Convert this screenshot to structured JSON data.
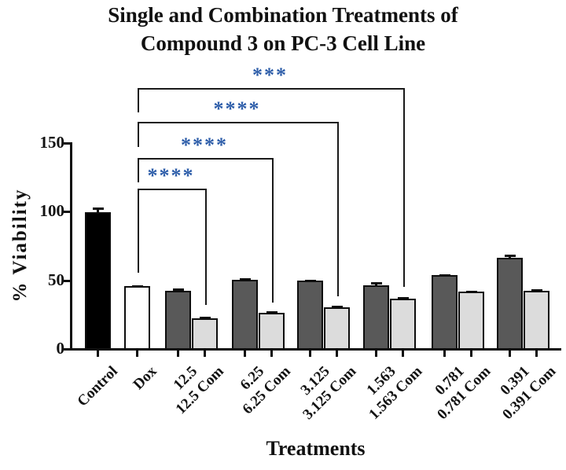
{
  "figure": {
    "title_line1": "Single and Combination Treatments of",
    "title_line2": "Compound 3 on PC-3 Cell Line"
  },
  "chart_data": {
    "type": "bar",
    "title": "Single and Combination Treatments of Compound 3 on PC-3 Cell Line",
    "xlabel": "Treatments",
    "ylabel": "% Viability",
    "ylim": [
      0,
      150
    ],
    "yticks": [
      "0",
      "50",
      "100",
      "150"
    ],
    "grid": false,
    "legend": "none",
    "categories": [
      "Control",
      "Dox",
      "12.5",
      "12.5 Com",
      "6.25",
      "6.25 Com",
      "3.125",
      "3.125 Com",
      "1.563",
      "1.563 Com",
      "0.781",
      "0.781 Com",
      "0.391",
      "0.391 Com"
    ],
    "values": [
      99,
      45,
      42,
      22,
      50,
      26,
      49,
      30,
      46,
      36,
      53,
      41,
      66,
      42
    ],
    "errors": [
      3.5,
      1,
      1.5,
      1,
      1,
      1,
      1,
      1,
      2,
      1,
      1,
      1,
      2,
      1
    ],
    "bar_colors": [
      "#000000",
      "#ffffff",
      "#595959",
      "#dcdcdc",
      "#595959",
      "#dcdcdc",
      "#595959",
      "#dcdcdc",
      "#595959",
      "#dcdcdc",
      "#595959",
      "#dcdcdc",
      "#595959",
      "#dcdcdc"
    ],
    "significance": [
      {
        "label": "***",
        "from": "Dox",
        "to": "1.563 Com"
      },
      {
        "label": "****",
        "from": "Dox",
        "to": "3.125 Com"
      },
      {
        "label": "****",
        "from": "Dox",
        "to": "6.25 Com"
      },
      {
        "label": "****",
        "from": "Dox",
        "to": "12.5 Com"
      }
    ],
    "sig_color": "#2d5da9",
    "axis_color": "#0d0d0d"
  }
}
